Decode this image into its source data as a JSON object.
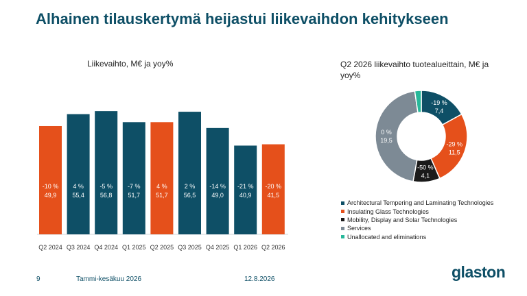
{
  "title": "Alhainen tilauskertymä heijastui liikevaihdon kehitykseen",
  "footer": {
    "page_number": "9",
    "period": "Tammi-kesäkuu 2026",
    "date": "12.8.2026",
    "logo": "glaston"
  },
  "colors": {
    "teal": "#0e4f66",
    "orange": "#e5501b",
    "black": "#1a1a1a",
    "grey": "#7d8a95",
    "green": "#27b89a"
  },
  "chart_data": [
    {
      "type": "bar",
      "subtitle": "Liikevaihto, M€ ja yoy%",
      "categories": [
        "Q2 2024",
        "Q3 2024",
        "Q4 2024",
        "Q1 2025",
        "Q2 2025",
        "Q3 2025",
        "Q4 2025",
        "Q1 2026",
        "Q2 2026"
      ],
      "values": [
        49.9,
        55.4,
        56.8,
        51.7,
        51.7,
        56.5,
        49.0,
        40.9,
        41.5
      ],
      "value_labels": [
        "49,9",
        "55,4",
        "56,8",
        "51,7",
        "51,7",
        "56,5",
        "49,0",
        "40,9",
        "41,5"
      ],
      "yoy_labels": [
        "-10 %",
        "4 %",
        "-5 %",
        "-7 %",
        "4 %",
        "2 %",
        "-14 %",
        "-21 %",
        "-20 %"
      ],
      "bar_colors": [
        "#e5501b",
        "#0e4f66",
        "#0e4f66",
        "#0e4f66",
        "#e5501b",
        "#0e4f66",
        "#0e4f66",
        "#0e4f66",
        "#e5501b"
      ],
      "ylim": [
        0,
        60
      ],
      "grid": false
    },
    {
      "type": "pie",
      "variant": "donut",
      "subtitle": "Q2 2026 liikevaihto tuotealueittain, M€ ja yoy%",
      "slices": [
        {
          "name": "Architectural Tempering and Laminating Technologies",
          "value": 7.4,
          "value_label": "7,4",
          "yoy": "-19 %",
          "color": "#0e4f66"
        },
        {
          "name": "Insulating Glass Technologies",
          "value": 11.5,
          "value_label": "11,5",
          "yoy": "-29 %",
          "color": "#e5501b"
        },
        {
          "name": "Mobility, Display and Solar Technologies",
          "value": 4.1,
          "value_label": "4,1",
          "yoy": "-50 %",
          "color": "#1a1a1a"
        },
        {
          "name": "Services",
          "value": 19.5,
          "value_label": "19,5",
          "yoy": "0 %",
          "color": "#7d8a95"
        },
        {
          "name": "Unallocated and eliminations",
          "value": -1.0,
          "color": "#27b89a"
        }
      ],
      "legend_position": "bottom"
    }
  ]
}
